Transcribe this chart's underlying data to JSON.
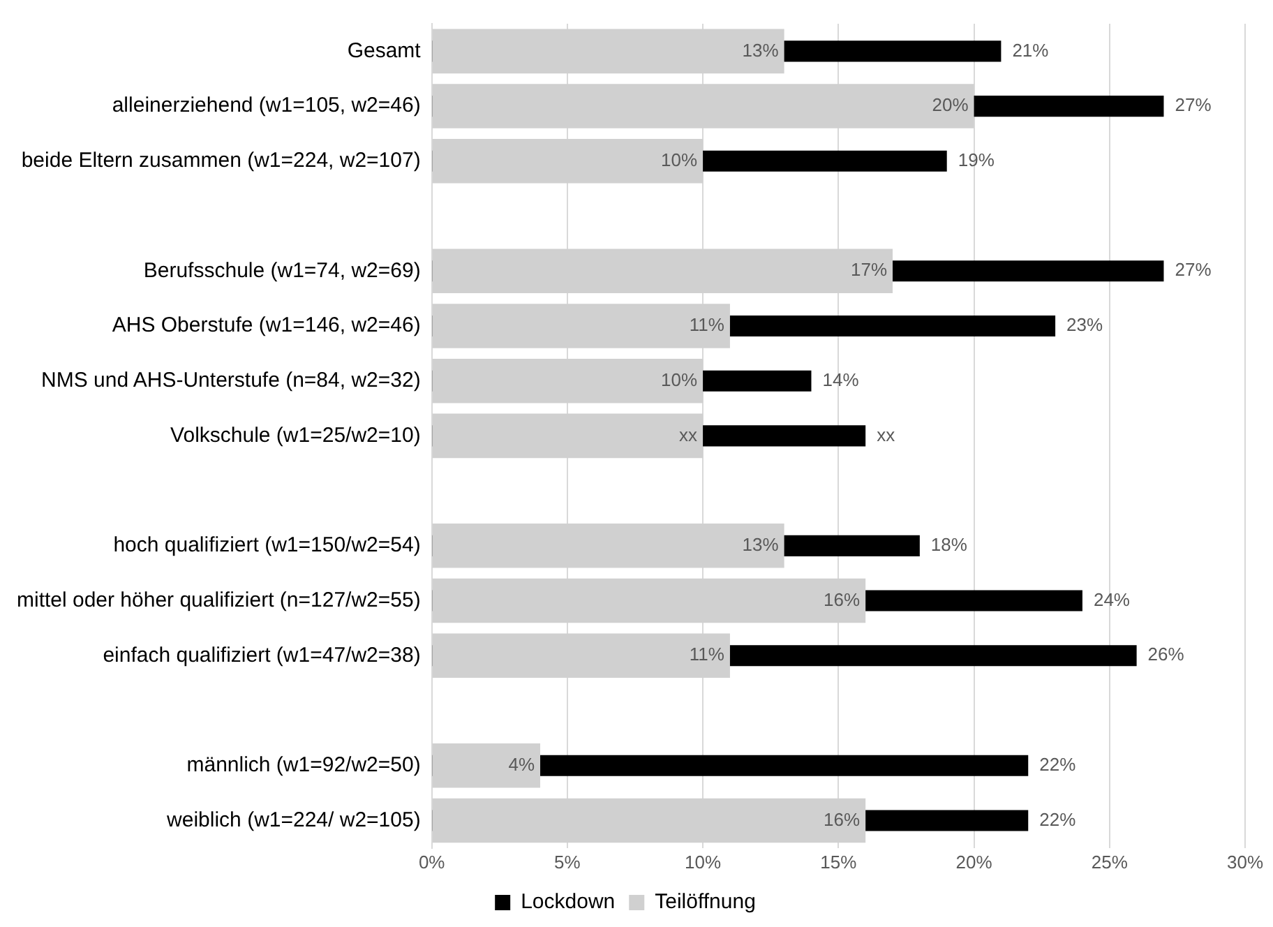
{
  "chart_data": {
    "type": "bar",
    "orientation": "horizontal",
    "categories": [
      "Gesamt",
      "alleinerziehend (w1=105, w2=46)",
      "beide Eltern zusammen (w1=224, w2=107)",
      null,
      "Berufsschule (w1=74, w2=69)",
      "AHS Oberstufe (w1=146, w2=46)",
      "NMS und AHS-Unterstufe (n=84, w2=32)",
      "Volkschule (w1=25/w2=10)",
      null,
      "hoch qualifiziert (w1=150/w2=54)",
      "mittel oder höher qualifiziert (n=127/w2=55)",
      "einfach qualifiziert (w1=47/w2=38)",
      null,
      "männlich (w1=92/w2=50)",
      "weiblich (w1=224/ w2=105)"
    ],
    "series": [
      {
        "name": "Lockdown",
        "color": "#000000",
        "values": [
          21,
          27,
          19,
          null,
          27,
          23,
          14,
          16,
          null,
          18,
          24,
          26,
          null,
          22,
          22
        ],
        "value_labels": [
          "21%",
          "27%",
          "19%",
          null,
          "27%",
          "23%",
          "14%",
          "xx",
          null,
          "18%",
          "24%",
          "26%",
          null,
          "22%",
          "22%"
        ]
      },
      {
        "name": "Teilöffnung",
        "color": "#d0d0d0",
        "values": [
          13,
          20,
          10,
          null,
          17,
          11,
          10,
          10,
          null,
          13,
          16,
          11,
          null,
          4,
          16
        ],
        "value_labels": [
          "13%",
          "20%",
          "10%",
          null,
          "17%",
          "11%",
          "10%",
          "xx",
          null,
          "13%",
          "16%",
          "11%",
          null,
          "4%",
          "16%"
        ]
      }
    ],
    "xlim": [
      0,
      30
    ],
    "xticks": [
      {
        "value": 0,
        "label": "0%"
      },
      {
        "value": 5,
        "label": "5%"
      },
      {
        "value": 10,
        "label": "10%"
      },
      {
        "value": 15,
        "label": "15%"
      },
      {
        "value": 20,
        "label": "20%"
      },
      {
        "value": 25,
        "label": "25%"
      },
      {
        "value": 30,
        "label": "30%"
      }
    ],
    "grid": "x",
    "legend": "bottom"
  }
}
